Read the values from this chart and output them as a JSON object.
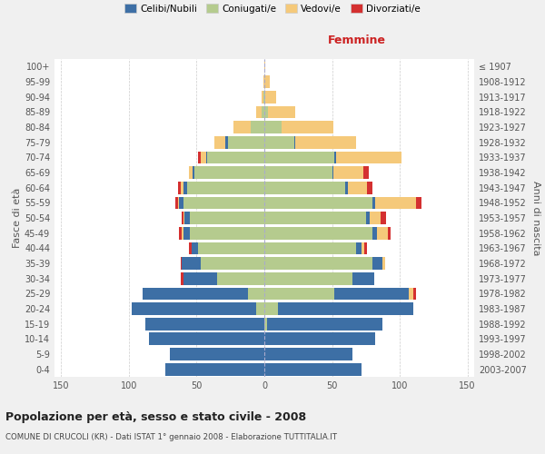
{
  "age_groups": [
    "0-4",
    "5-9",
    "10-14",
    "15-19",
    "20-24",
    "25-29",
    "30-34",
    "35-39",
    "40-44",
    "45-49",
    "50-54",
    "55-59",
    "60-64",
    "65-69",
    "70-74",
    "75-79",
    "80-84",
    "85-89",
    "90-94",
    "95-99",
    "100+"
  ],
  "birth_years": [
    "2003-2007",
    "1998-2002",
    "1993-1997",
    "1988-1992",
    "1983-1987",
    "1978-1982",
    "1973-1977",
    "1968-1972",
    "1963-1967",
    "1958-1962",
    "1953-1957",
    "1948-1952",
    "1943-1947",
    "1938-1942",
    "1933-1937",
    "1928-1932",
    "1923-1927",
    "1918-1922",
    "1913-1917",
    "1908-1912",
    "≤ 1907"
  ],
  "colors": {
    "single": "#3d6fa5",
    "married": "#b5cb8e",
    "widowed": "#f5c97a",
    "divorced": "#d43030"
  },
  "male": {
    "married": [
      0,
      0,
      0,
      0,
      6,
      12,
      35,
      47,
      49,
      55,
      55,
      60,
      57,
      52,
      42,
      27,
      10,
      2,
      1,
      0,
      0
    ],
    "single": [
      73,
      70,
      85,
      88,
      92,
      78,
      25,
      14,
      5,
      5,
      4,
      3,
      3,
      1,
      1,
      2,
      0,
      0,
      0,
      0,
      0
    ],
    "widowed": [
      0,
      0,
      0,
      0,
      0,
      0,
      0,
      0,
      0,
      1,
      1,
      1,
      2,
      3,
      4,
      8,
      13,
      4,
      1,
      1,
      0
    ],
    "divorced": [
      0,
      0,
      0,
      0,
      0,
      0,
      2,
      1,
      2,
      2,
      1,
      2,
      2,
      0,
      2,
      0,
      0,
      0,
      0,
      0,
      0
    ]
  },
  "female": {
    "married": [
      0,
      0,
      0,
      2,
      10,
      52,
      65,
      80,
      68,
      80,
      75,
      80,
      60,
      50,
      52,
      22,
      13,
      3,
      1,
      0,
      0
    ],
    "single": [
      72,
      65,
      82,
      85,
      100,
      55,
      16,
      7,
      4,
      3,
      3,
      2,
      2,
      1,
      1,
      1,
      0,
      0,
      0,
      0,
      0
    ],
    "widowed": [
      0,
      0,
      0,
      0,
      0,
      3,
      0,
      2,
      2,
      8,
      8,
      30,
      14,
      22,
      48,
      45,
      38,
      20,
      8,
      4,
      1
    ],
    "divorced": [
      0,
      0,
      0,
      0,
      0,
      2,
      0,
      0,
      2,
      2,
      4,
      4,
      4,
      4,
      0,
      0,
      0,
      0,
      0,
      0,
      0
    ]
  },
  "xlim": 155,
  "title": "Popolazione per età, sesso e stato civile - 2008",
  "subtitle": "COMUNE DI CRUCOLI (KR) - Dati ISTAT 1° gennaio 2008 - Elaborazione TUTTITALIA.IT",
  "xlabel_right": "Femmine",
  "ylabel_left": "Fasce di età",
  "ylabel_right": "Anni di nascita",
  "bg_color": "#f0f0f0",
  "plot_bg": "#ffffff"
}
